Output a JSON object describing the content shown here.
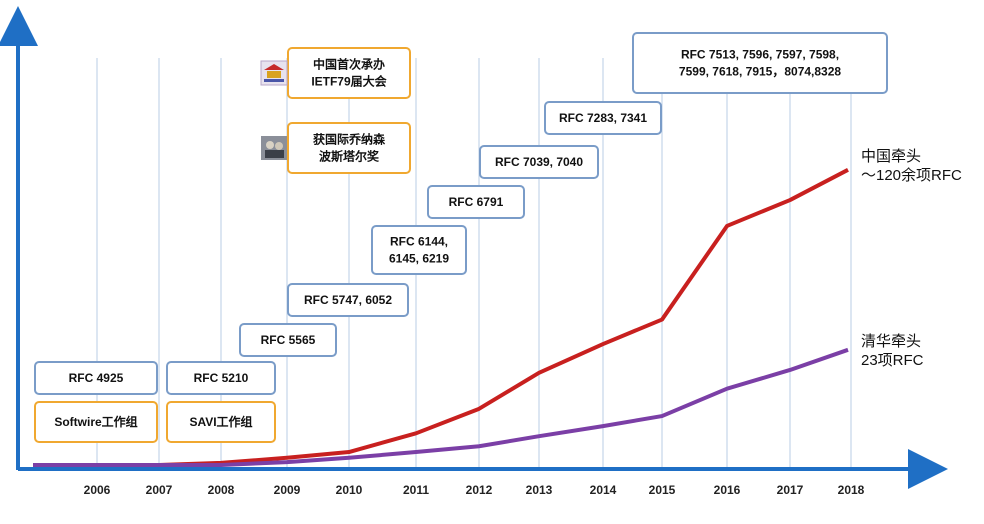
{
  "chart_data": {
    "type": "line",
    "title": "",
    "xlabel": "",
    "ylabel": "",
    "x": [
      "2006",
      "2007",
      "2008",
      "2009",
      "2010",
      "2011",
      "2012",
      "2013",
      "2014",
      "2015",
      "2016",
      "2017",
      "2018"
    ],
    "grid": "vertical",
    "series": [
      {
        "name": "中国牵头 ~120余项RFC",
        "color": "#c8201f",
        "label_lines": [
          "中国牵头",
          "～120余项RFC"
        ],
        "values": [
          0,
          0,
          1.5,
          5,
          9,
          22,
          39,
          64,
          84,
          101,
          166,
          184,
          205
        ]
      },
      {
        "name": "清华牵头 23项RFC",
        "color": "#7b3fa6",
        "label_lines": [
          "清华牵头",
          "23项RFC"
        ],
        "values": [
          0,
          0,
          0,
          2,
          5,
          9,
          13,
          20,
          27,
          34,
          53,
          66,
          80
        ]
      }
    ],
    "annotations": [
      {
        "year": "2006",
        "lines": [
          "RFC 4925"
        ],
        "border": "#7a9cc8"
      },
      {
        "year": "2006",
        "lines": [
          "Softwire工作组"
        ],
        "border": "#f0a830"
      },
      {
        "year": "2008",
        "lines": [
          "RFC 5210"
        ],
        "border": "#7a9cc8"
      },
      {
        "year": "2008",
        "lines": [
          "SAVI工作组"
        ],
        "border": "#f0a830"
      },
      {
        "year": "2009",
        "lines": [
          "RFC 5565"
        ],
        "border": "#7a9cc8"
      },
      {
        "year": "2010",
        "lines": [
          "RFC 5747, 6052"
        ],
        "border": "#7a9cc8"
      },
      {
        "year": "2010",
        "lines": [
          "中国首次承办",
          "IETF79届大会"
        ],
        "border": "#f0a830",
        "icon": "ietf-logo-icon"
      },
      {
        "year": "2010",
        "lines": [
          "获国际乔纳森",
          "波斯塔尔奖"
        ],
        "border": "#f0a830",
        "icon": "award-photo-icon"
      },
      {
        "year": "2011",
        "lines": [
          "RFC 6144,",
          "6145, 6219"
        ],
        "border": "#7a9cc8"
      },
      {
        "year": "2012",
        "lines": [
          "RFC 6791"
        ],
        "border": "#7a9cc8"
      },
      {
        "year": "2013",
        "lines": [
          "RFC 7039, 7040"
        ],
        "border": "#7a9cc8"
      },
      {
        "year": "2014",
        "lines": [
          "RFC 7283, 7341"
        ],
        "border": "#7a9cc8"
      },
      {
        "year": "2016",
        "lines": [
          "RFC 7513, 7596, 7597, 7598,",
          "7599, 7618, 7915，8074,8328"
        ],
        "border": "#7a9cc8"
      }
    ],
    "colors": {
      "axis": "#1f6fc5",
      "grid": "#b9cde6"
    }
  }
}
